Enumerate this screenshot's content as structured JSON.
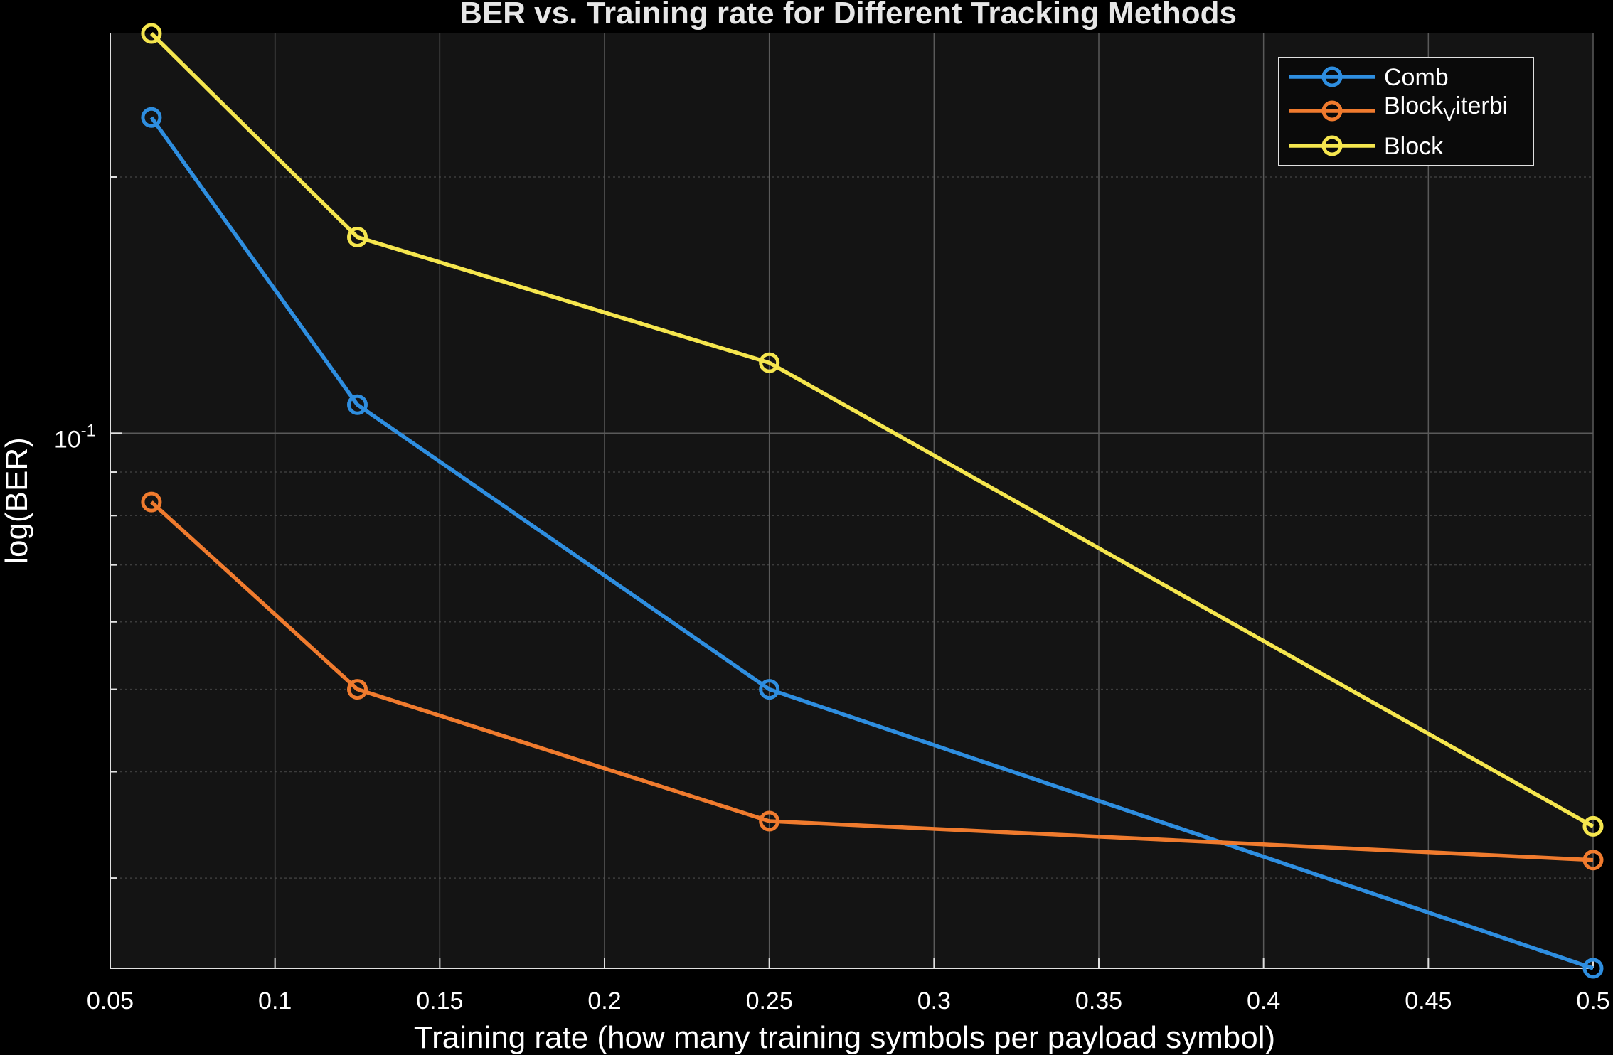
{
  "chart_data": {
    "type": "line",
    "title": "BER vs. Training rate for Different Tracking Methods",
    "xlabel": "Training rate (how many training symbols per payload symbol)",
    "ylabel": "log(BER)",
    "xlim": [
      0.05,
      0.5
    ],
    "ylim": [
      0.0235,
      0.295
    ],
    "yscale": "log",
    "grid": true,
    "legend_position": "top-right",
    "x_ticks": [
      0.05,
      0.1,
      0.15,
      0.2,
      0.25,
      0.3,
      0.35,
      0.4,
      0.45,
      0.5
    ],
    "x_tick_labels": [
      "0.05",
      "0.1",
      "0.15",
      "0.2",
      "0.25",
      "0.3",
      "0.35",
      "0.4",
      "0.45",
      "0.5"
    ],
    "y_tick_label": {
      "base": "10",
      "exponent": "-1",
      "value": 0.1
    },
    "x": [
      0.0625,
      0.125,
      0.25,
      0.5
    ],
    "series": [
      {
        "name": "Comb",
        "color": "#2e8ee0",
        "values": [
          0.235,
          0.108,
          0.05,
          0.0235
        ]
      },
      {
        "name": "Block_Viterbi",
        "legend_main": "Block",
        "legend_sub": "Viterbi",
        "color": "#f07b2e",
        "values": [
          0.083,
          0.05,
          0.035,
          0.0315
        ]
      },
      {
        "name": "Block",
        "color": "#f5e64e",
        "values": [
          0.295,
          0.17,
          0.121,
          0.0345
        ]
      }
    ]
  },
  "colors": {
    "background": "#000000",
    "plot_area": "#141414",
    "grid_major": "#5a5a5a",
    "grid_minor": "#3c3c3c",
    "axis": "#e0e0e0",
    "legend_bg": "#0a0a0a",
    "legend_border": "#e0e0e0"
  }
}
